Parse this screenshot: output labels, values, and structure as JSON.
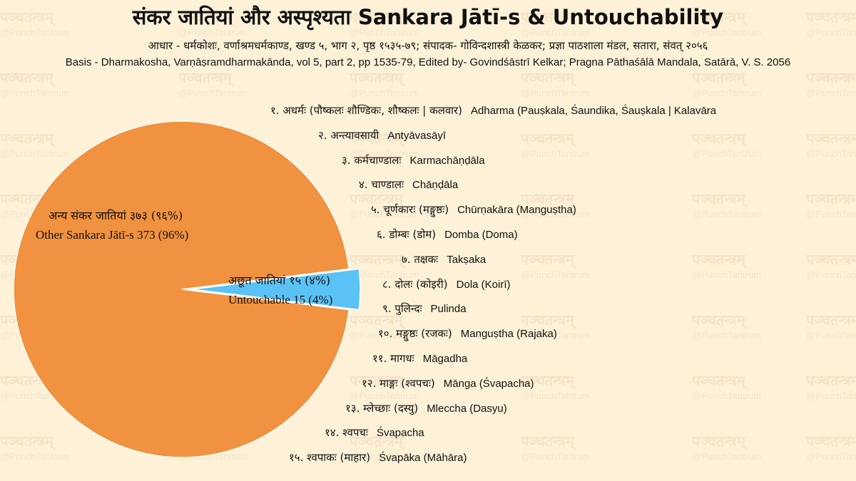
{
  "title": "संकर जातियां और अस्पृश्यता Sankara Jātī-s & Untouchability",
  "subtitle_devanagari": "आधार - धर्मकोशः, वर्णाश्रमधर्मकाण्ड, खण्ड ५, भाग २, पृष्ठ १५३५-७९; संपादक- गोविन्दशास्त्री केळकर; प्रज्ञा पाठशाला मंडल, सतारा, संवत् २०५६",
  "subtitle_english": "Basis - Dharmakosha, Varṇāṣramdharmakānda, vol 5, part 2, pp 1535-79, Edited by- Govindśāstrī Kelkar; Pragna Pāthaśālā Mandala, Satārā, V. S. 2056",
  "watermark": {
    "devanagari": "पञ्चतन्त्रम्",
    "handle": "@PunchTantrum"
  },
  "colors": {
    "other": "#f0923f",
    "untouchable": "#5bc2f5",
    "background": "#fdf1d8"
  },
  "chart_data": {
    "type": "pie",
    "slices": [
      {
        "label_devanagari": "अन्य संकर जातियां ३७३ (९६%)",
        "label_english": "Other Sankara Jātī-s 373 (96%)",
        "value": 373,
        "percent": 96
      },
      {
        "label_devanagari": "अछूत जातियां १५ (४%)",
        "label_english": "Untouchable 15 (4%)",
        "value": 15,
        "percent": 4
      }
    ],
    "exploded_slice": 1
  },
  "untouchable_list": [
    {
      "devanagari": "१. अधर्मः (पौष्कलः शौण्डिकः, शौष्कलः | कलवार)",
      "english": "Adharma (Pauṣkala, Śaundika, Śauṣkala | Kalavāra"
    },
    {
      "devanagari": "२. अन्त्यावसायी",
      "english": "Antyāvasāyī"
    },
    {
      "devanagari": "३. कर्मचाण्डालः",
      "english": "Karmachāṇḍāla"
    },
    {
      "devanagari": "४. चाण्डालः",
      "english": "Chāṇḍāla"
    },
    {
      "devanagari": "५. चूर्णकारः (मङ्गुष्ठः)",
      "english": "Chūrṇakāra (Manguṣtha)"
    },
    {
      "devanagari": "६. डोम्बः (डोम)",
      "english": "Domba (Doma)"
    },
    {
      "devanagari": "७. तक्षकः",
      "english": "Takṣaka"
    },
    {
      "devanagari": "८. दोलः (कोइरी)",
      "english": "Dola (Koirī)"
    },
    {
      "devanagari": "९. पुलिन्दः",
      "english": "Pulinda"
    },
    {
      "devanagari": "१०. मङ्गुष्ठः (रजकः)",
      "english": "Manguṣtha (Rajaka)"
    },
    {
      "devanagari": "११. मागधः",
      "english": "Māgadha"
    },
    {
      "devanagari": "१२. माङ्गः (श्वपचः)",
      "english": "Mānga (Śvapacha)"
    },
    {
      "devanagari": "१३. म्लेच्छाः (दस्यु)",
      "english": "Mleccha (Dasyu)"
    },
    {
      "devanagari": "१४. श्वपचः",
      "english": "Śvapacha"
    },
    {
      "devanagari": "१५. श्वपाकः (माहार)",
      "english": "Śvapāka (Māhāra)"
    }
  ]
}
